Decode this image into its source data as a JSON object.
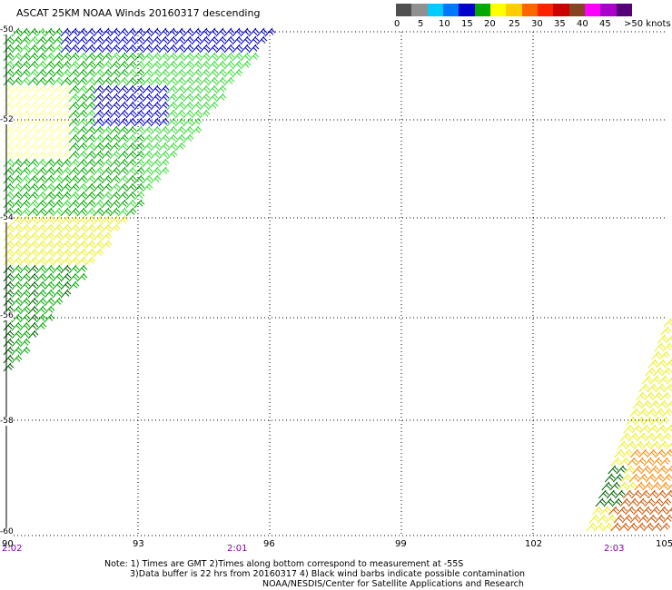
{
  "title": "ASCAT 25KM NOAA Winds 20160317 descending",
  "colors": {
    "blue": "#0000cc",
    "dark_green": "#006400",
    "green": "#00aa00",
    "light_green": "#33dd33",
    "yellow": "#eeee22",
    "light_yellow": "#ffff99",
    "orange": "#ff8800",
    "dark_orange": "#cc5500",
    "grid": "#000000"
  },
  "legend": {
    "swatches": [
      "#505050",
      "#909090",
      "#00ccff",
      "#0077ff",
      "#0000cc",
      "#00aa00",
      "#ffff00",
      "#ffcc00",
      "#ff6600",
      "#ff2200",
      "#cc0000",
      "#884422",
      "#ff00ff",
      "#aa00cc",
      "#550077"
    ],
    "labels": [
      "0",
      "5",
      "10",
      "15",
      "20",
      "25",
      "30",
      "35",
      "40",
      "45",
      ">50 knots"
    ]
  },
  "map": {
    "lat_labels": [
      "-50",
      "-52",
      "-54",
      "-56",
      "-58",
      "-60"
    ],
    "lon_labels": [
      "90",
      "93",
      "96",
      "99",
      "102",
      "105"
    ],
    "time_labels": [
      "2:02",
      "2:01",
      "2:03"
    ]
  },
  "notes": {
    "line1": "Note: 1) Times are GMT 2)Times along bottom correspond to measurement at -55S",
    "line2": "3)Data buffer is 22 hrs from 20160317 4) Black wind barbs indicate possible contamination",
    "line3": "NOAA/NESDIS/Center for Satellite Applications and Research"
  }
}
